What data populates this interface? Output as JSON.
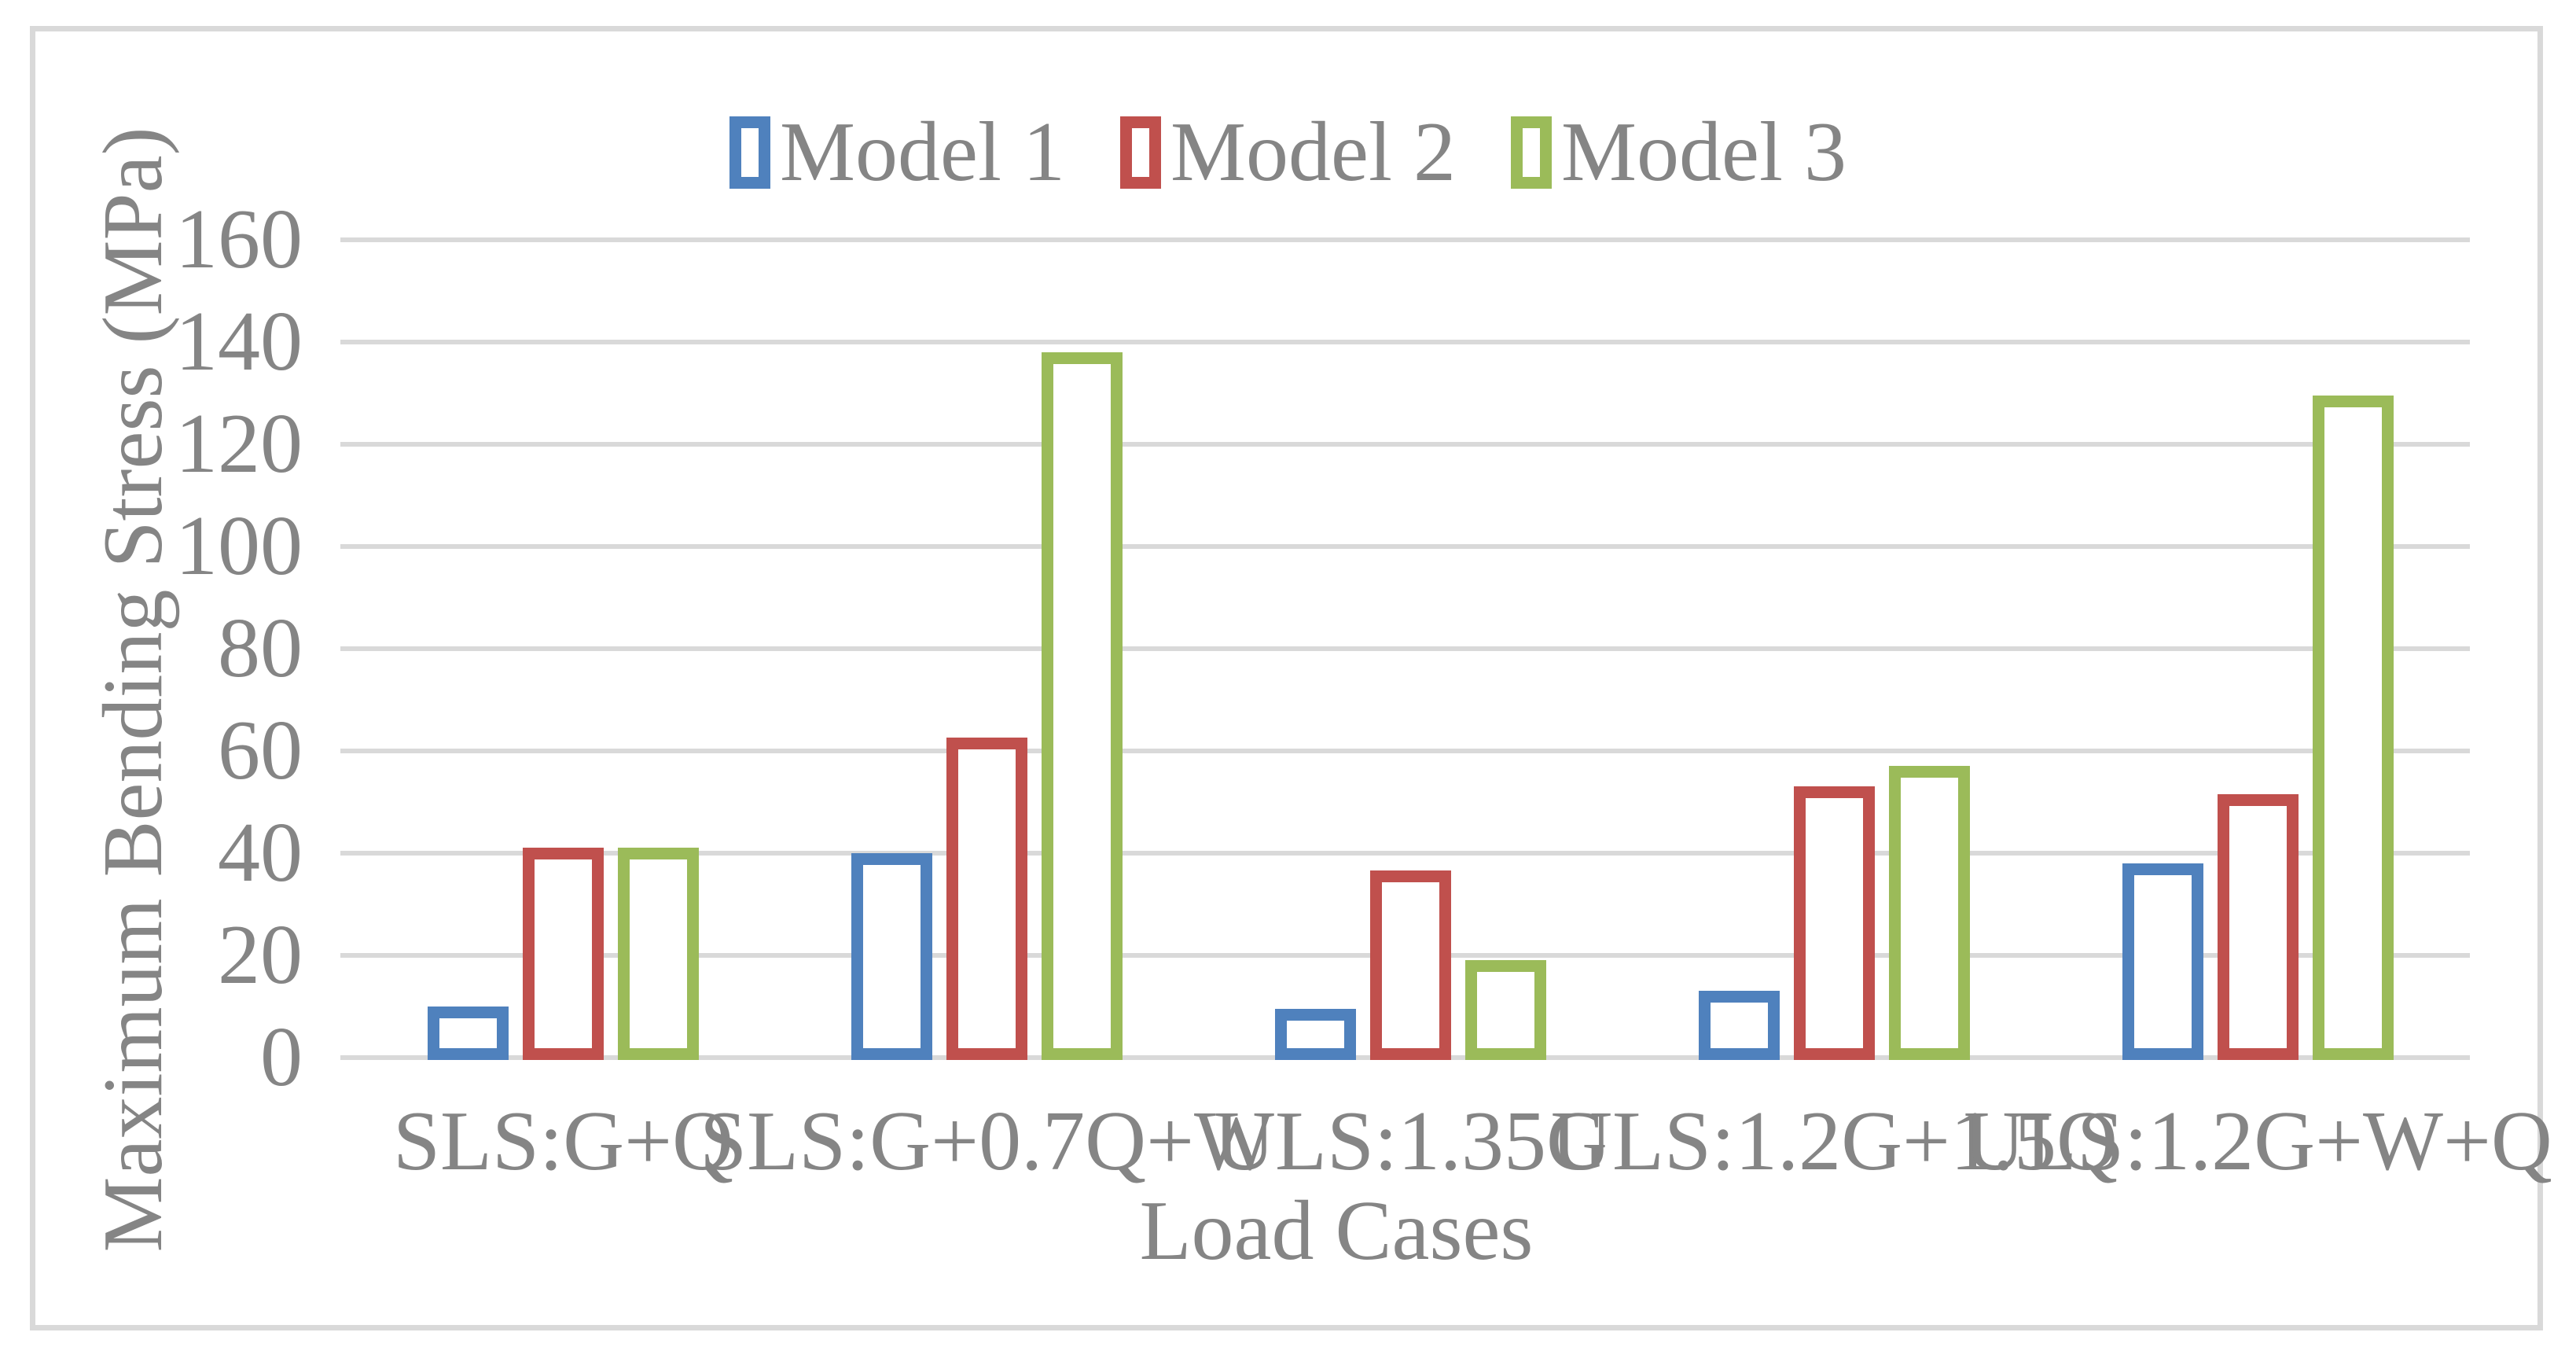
{
  "chart_data": {
    "type": "bar",
    "title": "",
    "xlabel": "Load Cases",
    "ylabel": "Maximum Bending Stress (MPa)",
    "categories": [
      "SLS:G+Q",
      "SLS:G+0.7Q+W",
      "ULS:1.35G",
      "ULS:1.2G+1.5Q",
      "ULS:1.2G+W+Q"
    ],
    "series": [
      {
        "name": "Model 1",
        "color": "#4F81BD",
        "values": [
          10.5,
          40.5,
          10,
          13.5,
          38.5
        ]
      },
      {
        "name": "Model 2",
        "color": "#C0504D",
        "values": [
          41.5,
          63,
          37,
          53.5,
          52
        ]
      },
      {
        "name": "Model 3",
        "color": "#9BBB59",
        "values": [
          41.5,
          138.5,
          19.5,
          57.5,
          130
        ]
      }
    ],
    "ylim": [
      0,
      160
    ],
    "ytick_step": 20,
    "yticks": [
      0,
      20,
      40,
      60,
      80,
      100,
      120,
      140,
      160
    ],
    "grid": true,
    "legend_position": "top-center",
    "bar_style": "outlined-hollow"
  },
  "colors": {
    "grid": "#D9D9D9",
    "axis_text": "#858585",
    "background": "#FFFFFF",
    "series_blue": "#4F81BD",
    "series_red": "#C0504D",
    "series_green": "#9BBB59"
  }
}
